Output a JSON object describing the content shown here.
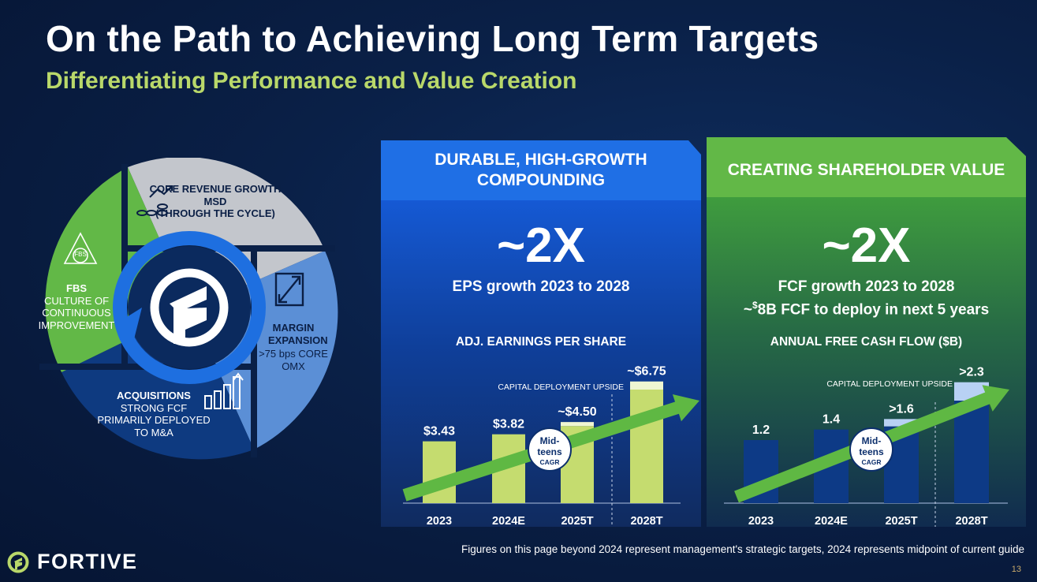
{
  "header": {
    "title": "On the Path to Achieving Long Term Targets",
    "subtitle": "Differentiating Performance and Value Creation"
  },
  "wheel": {
    "core_revenue": {
      "title": "CORE REVENUE GROWTH",
      "line1": "MSD",
      "line2": "(THROUGH THE CYCLE)"
    },
    "margin": {
      "title": "MARGIN EXPANSION",
      "line1": ">75 bps CORE",
      "line2": "OMX"
    },
    "acquisitions": {
      "title": "ACQUISITIONS",
      "line1": "STRONG FCF",
      "line2": "PRIMARILY DEPLOYED",
      "line3": "TO M&A"
    },
    "fbs": {
      "title": "FBS",
      "line1": "CULTURE OF",
      "line2": "CONTINUOUS",
      "line3": "IMPROVEMENT",
      "badge": "FBS"
    },
    "colors": {
      "green": "#62b847",
      "gray": "#c3c6cc",
      "light_blue": "#5b8fd6",
      "navy": "#0e3a80",
      "ring": "#1e6fe0"
    }
  },
  "left_panel": {
    "header": "DURABLE, HIGH-GROWTH COMPOUNDING",
    "big": "~2X",
    "line1": "EPS growth 2023 to 2028",
    "accent": "#1f6fe5"
  },
  "right_panel": {
    "header": "CREATING SHAREHOLDER VALUE",
    "big": "~2X",
    "line1": "FCF growth 2023 to 2028",
    "line2_prefix": "~",
    "line2_sup": "$",
    "line2_rest": "8B FCF to deploy in next 5 years",
    "accent": "#62b847"
  },
  "chart_data": [
    {
      "type": "bar",
      "title": "ADJ. EARNINGS PER SHARE",
      "categories": [
        "2023",
        "2024E",
        "2025T",
        "2028T"
      ],
      "values": [
        3.43,
        3.82,
        4.5,
        6.75
      ],
      "base_values": [
        3.43,
        3.82,
        4.28,
        6.3
      ],
      "upside_values": [
        0,
        0,
        0.22,
        0.45
      ],
      "labels": [
        "$3.43",
        "$3.82",
        "~$4.50",
        "~$6.75"
      ],
      "annotation": "CAPITAL DEPLOYMENT UPSIDE",
      "cagr_badge": {
        "line1": "Mid-",
        "line2": "teens",
        "line3": "CAGR"
      },
      "ylim": [
        0,
        7
      ],
      "colors": {
        "bar": "#c5dc6f",
        "upside": "#eff6d2",
        "arrow": "#5fb843"
      }
    },
    {
      "type": "bar",
      "title": "ANNUAL FREE CASH FLOW ($B)",
      "categories": [
        "2023",
        "2024E",
        "2025T",
        "2028T"
      ],
      "values": [
        1.2,
        1.4,
        1.6,
        2.3
      ],
      "base_values": [
        1.2,
        1.4,
        1.46,
        1.95
      ],
      "upside_values": [
        0,
        0,
        0.14,
        0.35
      ],
      "labels": [
        "1.2",
        "1.4",
        ">1.6",
        ">2.3"
      ],
      "annotation": "CAPITAL DEPLOYMENT UPSIDE",
      "cagr_badge": {
        "line1": "Mid-",
        "line2": "teens",
        "line3": "CAGR"
      },
      "ylim": [
        0,
        2.4
      ],
      "colors": {
        "bar": "#0d3a86",
        "upside": "#b8d1f4",
        "arrow": "#5fb843"
      }
    }
  ],
  "footnote": "Figures on this page beyond 2024 represent management's strategic targets, 2024 represents midpoint of current guide",
  "page_number": "13",
  "logo_text": "FORTIVE"
}
